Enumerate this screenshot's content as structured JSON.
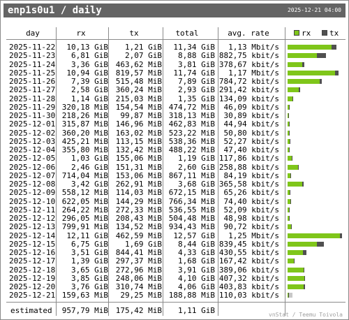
{
  "title": "enp1s0u1 / daily",
  "timestamp": "2025-12-21 04:00",
  "headers": {
    "day": "day",
    "rx": "rx",
    "tx": "tx",
    "total": "total",
    "rate": "avg. rate"
  },
  "legend": {
    "rx": "rx",
    "tx": "tx"
  },
  "colors": {
    "rx": "#7fc61a",
    "tx": "#505050",
    "estimate": "#c8c8c8",
    "grid": "#8a8a8a",
    "title_bg": "#646464"
  },
  "rows": [
    {
      "day": "2025-11-22",
      "rx": "10,13 GiB",
      "tx": "1,21 GiB",
      "total": "11,34 GiB",
      "rate": "1,13 Mbit/s",
      "rx_gib": 10.13,
      "tx_gib": 1.21
    },
    {
      "day": "2025-11-23",
      "rx": "6,81 GiB",
      "tx": "2,07 GiB",
      "total": "8,88 GiB",
      "rate": "882,75 kbit/s",
      "rx_gib": 6.81,
      "tx_gib": 2.07
    },
    {
      "day": "2025-11-24",
      "rx": "3,36 GiB",
      "tx": "463,62 MiB",
      "total": "3,81 GiB",
      "rate": "378,67 kbit/s",
      "rx_gib": 3.36,
      "tx_gib": 0.4528
    },
    {
      "day": "2025-11-25",
      "rx": "10,94 GiB",
      "tx": "819,57 MiB",
      "total": "11,74 GiB",
      "rate": "1,17 Mbit/s",
      "rx_gib": 10.94,
      "tx_gib": 0.8003
    },
    {
      "day": "2025-11-26",
      "rx": "7,39 GiB",
      "tx": "515,48 MiB",
      "total": "7,89 GiB",
      "rate": "784,72 kbit/s",
      "rx_gib": 7.39,
      "tx_gib": 0.5034
    },
    {
      "day": "2025-11-27",
      "rx": "2,58 GiB",
      "tx": "360,24 MiB",
      "total": "2,93 GiB",
      "rate": "291,42 kbit/s",
      "rx_gib": 2.58,
      "tx_gib": 0.3518
    },
    {
      "day": "2025-11-28",
      "rx": "1,14 GiB",
      "tx": "215,03 MiB",
      "total": "1,35 GiB",
      "rate": "134,09 kbit/s",
      "rx_gib": 1.14,
      "tx_gib": 0.21
    },
    {
      "day": "2025-11-29",
      "rx": "320,18 MiB",
      "tx": "154,54 MiB",
      "total": "474,72 MiB",
      "rate": "46,09 kbit/s",
      "rx_gib": 0.3127,
      "tx_gib": 0.1509
    },
    {
      "day": "2025-11-30",
      "rx": "218,26 MiB",
      "tx": "99,87 MiB",
      "total": "318,13 MiB",
      "rate": "30,89 kbit/s",
      "rx_gib": 0.2131,
      "tx_gib": 0.0975
    },
    {
      "day": "2025-12-01",
      "rx": "315,87 MiB",
      "tx": "146,96 MiB",
      "total": "462,83 MiB",
      "rate": "44,94 kbit/s",
      "rx_gib": 0.3085,
      "tx_gib": 0.1435
    },
    {
      "day": "2025-12-02",
      "rx": "360,20 MiB",
      "tx": "163,02 MiB",
      "total": "523,22 MiB",
      "rate": "50,80 kbit/s",
      "rx_gib": 0.3518,
      "tx_gib": 0.1592
    },
    {
      "day": "2025-12-03",
      "rx": "425,21 MiB",
      "tx": "113,15 MiB",
      "total": "538,36 MiB",
      "rate": "52,27 kbit/s",
      "rx_gib": 0.4152,
      "tx_gib": 0.1105
    },
    {
      "day": "2025-12-04",
      "rx": "355,80 MiB",
      "tx": "132,42 MiB",
      "total": "488,22 MiB",
      "rate": "47,40 kbit/s",
      "rx_gib": 0.3475,
      "tx_gib": 0.1293
    },
    {
      "day": "2025-12-05",
      "rx": "1,03 GiB",
      "tx": "155,06 MiB",
      "total": "1,19 GiB",
      "rate": "117,86 kbit/s",
      "rx_gib": 1.03,
      "tx_gib": 0.1514
    },
    {
      "day": "2025-12-06",
      "rx": "2,46 GiB",
      "tx": "151,31 MiB",
      "total": "2,60 GiB",
      "rate": "258,88 kbit/s",
      "rx_gib": 2.46,
      "tx_gib": 0.1478
    },
    {
      "day": "2025-12-07",
      "rx": "714,04 MiB",
      "tx": "153,06 MiB",
      "total": "867,11 MiB",
      "rate": "84,19 kbit/s",
      "rx_gib": 0.6973,
      "tx_gib": 0.1495
    },
    {
      "day": "2025-12-08",
      "rx": "3,42 GiB",
      "tx": "262,91 MiB",
      "total": "3,68 GiB",
      "rate": "365,58 kbit/s",
      "rx_gib": 3.42,
      "tx_gib": 0.2567
    },
    {
      "day": "2025-12-09",
      "rx": "558,12 MiB",
      "tx": "114,03 MiB",
      "total": "672,15 MiB",
      "rate": "65,26 kbit/s",
      "rx_gib": 0.545,
      "tx_gib": 0.1114
    },
    {
      "day": "2025-12-10",
      "rx": "622,05 MiB",
      "tx": "144,29 MiB",
      "total": "766,34 MiB",
      "rate": "74,40 kbit/s",
      "rx_gib": 0.6075,
      "tx_gib": 0.1409
    },
    {
      "day": "2025-12-11",
      "rx": "264,22 MiB",
      "tx": "272,33 MiB",
      "total": "536,55 MiB",
      "rate": "52,09 kbit/s",
      "rx_gib": 0.258,
      "tx_gib": 0.2659
    },
    {
      "day": "2025-12-12",
      "rx": "296,05 MiB",
      "tx": "208,43 MiB",
      "total": "504,48 MiB",
      "rate": "48,98 kbit/s",
      "rx_gib": 0.2891,
      "tx_gib": 0.2035
    },
    {
      "day": "2025-12-13",
      "rx": "799,91 MiB",
      "tx": "134,52 MiB",
      "total": "934,43 MiB",
      "rate": "90,72 kbit/s",
      "rx_gib": 0.7812,
      "tx_gib": 0.1314
    },
    {
      "day": "2025-12-14",
      "rx": "12,11 GiB",
      "tx": "462,59 MiB",
      "total": "12,57 GiB",
      "rate": "1,25 Mbit/s",
      "rx_gib": 12.11,
      "tx_gib": 0.4517
    },
    {
      "day": "2025-12-15",
      "rx": "6,75 GiB",
      "tx": "1,69 GiB",
      "total": "8,44 GiB",
      "rate": "839,45 kbit/s",
      "rx_gib": 6.75,
      "tx_gib": 1.69
    },
    {
      "day": "2025-12-16",
      "rx": "3,51 GiB",
      "tx": "844,41 MiB",
      "total": "4,33 GiB",
      "rate": "430,55 kbit/s",
      "rx_gib": 3.51,
      "tx_gib": 0.8246
    },
    {
      "day": "2025-12-17",
      "rx": "1,39 GiB",
      "tx": "297,37 MiB",
      "total": "1,68 GiB",
      "rate": "167,42 kbit/s",
      "rx_gib": 1.39,
      "tx_gib": 0.2904
    },
    {
      "day": "2025-12-18",
      "rx": "3,65 GiB",
      "tx": "272,96 MiB",
      "total": "3,91 GiB",
      "rate": "389,06 kbit/s",
      "rx_gib": 3.65,
      "tx_gib": 0.2666
    },
    {
      "day": "2025-12-19",
      "rx": "3,85 GiB",
      "tx": "248,06 MiB",
      "total": "4,10 GiB",
      "rate": "407,32 kbit/s",
      "rx_gib": 3.85,
      "tx_gib": 0.2422
    },
    {
      "day": "2025-12-20",
      "rx": "3,76 GiB",
      "tx": "310,74 MiB",
      "total": "4,06 GiB",
      "rate": "403,83 kbit/s",
      "rx_gib": 3.76,
      "tx_gib": 0.3035
    },
    {
      "day": "2025-12-21",
      "rx": "159,63 MiB",
      "tx": "29,25 MiB",
      "total": "188,88 MiB",
      "rate": "110,03 kbit/s",
      "rx_gib": 0.1559,
      "tx_gib": 0.0286,
      "estimated_total_gib": 1.11
    }
  ],
  "estimated": {
    "label": "estimated",
    "rx": "957,79 MiB",
    "tx": "175,42 MiB",
    "total": "1,11 GiB"
  },
  "footer": "vnStat / Teemu Toivola"
}
